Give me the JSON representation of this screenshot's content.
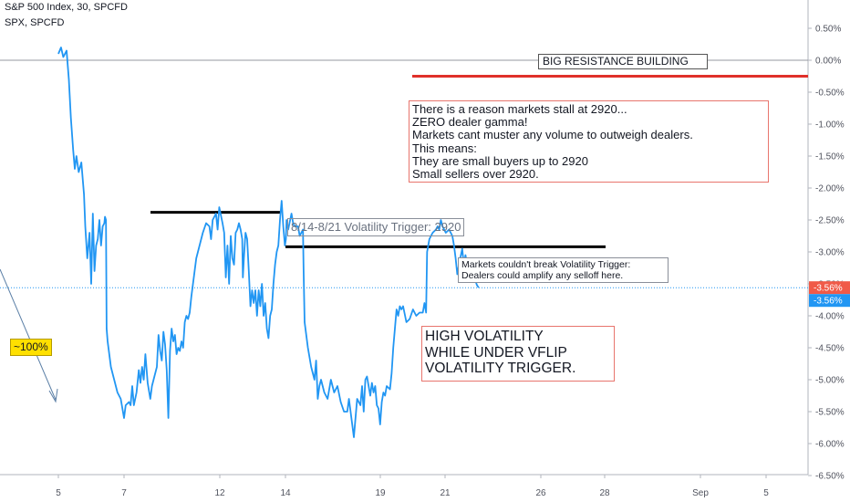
{
  "header": {
    "title": "S&P 500 Index, 30, SPCFD",
    "subtitle": "SPX, SPCFD"
  },
  "colors": {
    "series": "#2196f3",
    "level_lines": "#000000",
    "resistance": "#e0302a",
    "badge_price": "#f05a48",
    "badge_series": "#2196f3",
    "callout_yellow": "#ffe000"
  },
  "chart_data": {
    "type": "line",
    "x_tick_labels": [
      "5",
      "7",
      "12",
      "14",
      "19",
      "21",
      "26",
      "28",
      "Sep",
      "5"
    ],
    "y_tick_labels": [
      "0.50%",
      "0.00%",
      "-0.50%",
      "-1.00%",
      "-1.50%",
      "-2.00%",
      "-2.50%",
      "-3.00%",
      "-3.50%",
      "-4.00%",
      "-4.50%",
      "-5.00%",
      "-5.50%",
      "-6.00%",
      "-6.50%"
    ],
    "ylim": [
      -6.5,
      0.9
    ],
    "y_unit": "%",
    "grid": false,
    "last_value_labels": [
      "-3.56%",
      "-3.56%"
    ],
    "last_value": -3.56,
    "series": [
      {
        "points": [
          [
            0.0,
            0.1
          ],
          [
            0.08,
            0.2
          ],
          [
            0.15,
            0.05
          ],
          [
            0.25,
            0.15
          ],
          [
            0.32,
            -0.3
          ],
          [
            0.38,
            -0.9
          ],
          [
            0.45,
            -1.4
          ],
          [
            0.5,
            -1.7
          ],
          [
            0.55,
            -1.5
          ],
          [
            0.62,
            -1.75
          ],
          [
            0.7,
            -1.6
          ],
          [
            0.78,
            -2.1
          ],
          [
            0.82,
            -2.6
          ],
          [
            0.88,
            -3.1
          ],
          [
            0.95,
            -2.7
          ],
          [
            1.0,
            -3.5
          ],
          [
            1.05,
            -2.4
          ],
          [
            1.1,
            -3.3
          ],
          [
            1.15,
            -2.9
          ],
          [
            1.2,
            -2.8
          ],
          [
            1.25,
            -2.5
          ],
          [
            1.3,
            -2.9
          ],
          [
            1.35,
            -2.6
          ],
          [
            1.4,
            -2.55
          ],
          [
            1.42,
            -2.45
          ],
          [
            1.45,
            -2.5
          ],
          [
            1.47,
            -4.2
          ],
          [
            1.5,
            -4.4
          ],
          [
            1.55,
            -4.6
          ],
          [
            1.6,
            -4.8
          ],
          [
            1.7,
            -5.0
          ],
          [
            1.8,
            -5.2
          ],
          [
            1.9,
            -5.3
          ],
          [
            2.0,
            -5.6
          ],
          [
            2.05,
            -5.4
          ],
          [
            2.15,
            -5.35
          ],
          [
            2.2,
            -5.4
          ],
          [
            2.25,
            -5.1
          ],
          [
            2.3,
            -5.4
          ],
          [
            2.38,
            -5.2
          ],
          [
            2.45,
            -4.85
          ],
          [
            2.5,
            -5.05
          ],
          [
            2.55,
            -4.8
          ],
          [
            2.6,
            -5.0
          ],
          [
            2.65,
            -4.6
          ],
          [
            2.72,
            -5.05
          ],
          [
            2.8,
            -5.3
          ],
          [
            2.85,
            -5.1
          ],
          [
            2.9,
            -5.0
          ],
          [
            3.0,
            -4.8
          ],
          [
            3.05,
            -4.3
          ],
          [
            3.1,
            -4.55
          ],
          [
            3.15,
            -4.7
          ],
          [
            3.2,
            -4.25
          ],
          [
            3.25,
            -4.45
          ],
          [
            3.3,
            -4.85
          ],
          [
            3.35,
            -5.6
          ],
          [
            3.4,
            -4.55
          ],
          [
            3.45,
            -4.2
          ],
          [
            3.5,
            -4.4
          ],
          [
            3.55,
            -4.3
          ],
          [
            3.6,
            -4.6
          ],
          [
            3.65,
            -4.5
          ],
          [
            3.7,
            -4.55
          ],
          [
            3.75,
            -4.4
          ],
          [
            3.8,
            -4.5
          ],
          [
            3.85,
            -4.1
          ],
          [
            3.9,
            -4.0
          ],
          [
            3.95,
            -4.05
          ],
          [
            4.0,
            -3.95
          ],
          [
            4.05,
            -3.7
          ],
          [
            4.1,
            -3.5
          ],
          [
            4.15,
            -3.3
          ],
          [
            4.2,
            -3.1
          ],
          [
            4.3,
            -2.9
          ],
          [
            4.4,
            -2.7
          ],
          [
            4.5,
            -2.55
          ],
          [
            4.6,
            -2.6
          ],
          [
            4.65,
            -2.8
          ],
          [
            4.7,
            -2.5
          ],
          [
            4.8,
            -2.4
          ],
          [
            4.85,
            -2.65
          ],
          [
            4.9,
            -2.3
          ],
          [
            5.0,
            -2.55
          ],
          [
            5.05,
            -2.7
          ],
          [
            5.1,
            -3.4
          ],
          [
            5.15,
            -2.9
          ],
          [
            5.2,
            -3.5
          ],
          [
            5.25,
            -2.75
          ],
          [
            5.3,
            -3.1
          ],
          [
            5.35,
            -3.2
          ],
          [
            5.4,
            -2.7
          ],
          [
            5.45,
            -2.65
          ],
          [
            5.5,
            -2.55
          ],
          [
            5.55,
            -2.65
          ],
          [
            5.6,
            -2.8
          ],
          [
            5.62,
            -3.4
          ],
          [
            5.65,
            -3.1
          ],
          [
            5.7,
            -2.7
          ],
          [
            5.75,
            -2.8
          ],
          [
            5.8,
            -3.3
          ],
          [
            5.85,
            -3.85
          ],
          [
            5.9,
            -3.6
          ],
          [
            5.95,
            -3.8
          ],
          [
            6.0,
            -3.6
          ],
          [
            6.05,
            -4.0
          ],
          [
            6.1,
            -3.6
          ],
          [
            6.15,
            -3.85
          ],
          [
            6.2,
            -3.5
          ],
          [
            6.25,
            -4.0
          ],
          [
            6.3,
            -3.8
          ],
          [
            6.35,
            -4.2
          ],
          [
            6.4,
            -4.35
          ],
          [
            6.45,
            -4.0
          ],
          [
            6.5,
            -3.9
          ],
          [
            6.55,
            -3.5
          ],
          [
            6.6,
            -3.2
          ],
          [
            6.65,
            -3.0
          ],
          [
            6.7,
            -2.9
          ],
          [
            6.75,
            -2.5
          ],
          [
            6.8,
            -2.2
          ],
          [
            6.85,
            -2.6
          ],
          [
            6.9,
            -2.9
          ],
          [
            6.93,
            -2.8
          ],
          [
            6.95,
            -2.5
          ],
          [
            7.0,
            -2.65
          ],
          [
            7.1,
            -2.4
          ],
          [
            7.15,
            -2.55
          ],
          [
            7.2,
            -2.6
          ],
          [
            7.3,
            -2.6
          ],
          [
            7.35,
            -2.75
          ],
          [
            7.4,
            -2.7
          ],
          [
            7.45,
            -2.65
          ],
          [
            7.47,
            -3.3
          ],
          [
            7.5,
            -4.1
          ],
          [
            7.55,
            -4.3
          ],
          [
            7.6,
            -4.5
          ],
          [
            7.7,
            -4.8
          ],
          [
            7.8,
            -5.0
          ],
          [
            7.85,
            -4.7
          ],
          [
            7.9,
            -5.3
          ],
          [
            7.95,
            -5.1
          ],
          [
            8.0,
            -5.0
          ],
          [
            8.1,
            -5.2
          ],
          [
            8.2,
            -5.3
          ],
          [
            8.3,
            -5.0
          ],
          [
            8.4,
            -5.2
          ],
          [
            8.5,
            -5.1
          ],
          [
            8.6,
            -5.35
          ],
          [
            8.7,
            -5.5
          ],
          [
            8.8,
            -5.5
          ],
          [
            8.85,
            -5.3
          ],
          [
            8.9,
            -5.5
          ],
          [
            9.0,
            -5.9
          ],
          [
            9.1,
            -5.3
          ],
          [
            9.2,
            -5.4
          ],
          [
            9.25,
            -5.1
          ],
          [
            9.3,
            -5.5
          ],
          [
            9.35,
            -5.0
          ],
          [
            9.4,
            -4.95
          ],
          [
            9.5,
            -5.25
          ],
          [
            9.55,
            -5.05
          ],
          [
            9.6,
            -5.2
          ],
          [
            9.65,
            -5.1
          ],
          [
            9.7,
            -5.4
          ],
          [
            9.75,
            -5.45
          ],
          [
            9.8,
            -5.7
          ],
          [
            9.85,
            -5.35
          ],
          [
            9.9,
            -5.2
          ],
          [
            9.95,
            -5.25
          ],
          [
            10.0,
            -5.1
          ],
          [
            10.1,
            -5.15
          ],
          [
            10.15,
            -4.9
          ],
          [
            10.2,
            -4.5
          ],
          [
            10.25,
            -4.2
          ],
          [
            10.3,
            -3.9
          ],
          [
            10.35,
            -4.0
          ],
          [
            10.4,
            -3.85
          ],
          [
            10.45,
            -3.9
          ],
          [
            10.5,
            -3.85
          ],
          [
            10.6,
            -4.1
          ],
          [
            10.7,
            -4.05
          ],
          [
            10.8,
            -3.9
          ],
          [
            10.9,
            -4.0
          ],
          [
            11.0,
            -3.95
          ],
          [
            11.1,
            -3.95
          ],
          [
            11.15,
            -3.8
          ],
          [
            11.2,
            -3.95
          ],
          [
            11.23,
            -3.0
          ],
          [
            11.3,
            -2.8
          ],
          [
            11.4,
            -2.7
          ],
          [
            11.5,
            -2.65
          ],
          [
            11.55,
            -2.6
          ],
          [
            11.6,
            -2.65
          ],
          [
            11.65,
            -2.5
          ],
          [
            11.7,
            -2.6
          ],
          [
            11.8,
            -2.7
          ],
          [
            11.9,
            -2.65
          ],
          [
            12.0,
            -2.75
          ],
          [
            12.05,
            -2.9
          ],
          [
            12.1,
            -3.1
          ],
          [
            12.15,
            -3.35
          ],
          [
            12.2,
            -3.2
          ],
          [
            12.3,
            -2.95
          ],
          [
            12.35,
            -3.2
          ],
          [
            12.4,
            -3.05
          ],
          [
            12.45,
            -3.2
          ],
          [
            12.5,
            -3.35
          ],
          [
            12.55,
            -3.25
          ],
          [
            12.6,
            -3.2
          ],
          [
            12.65,
            -3.35
          ],
          [
            12.7,
            -3.45
          ],
          [
            12.75,
            -3.52
          ],
          [
            12.8,
            -3.56
          ]
        ]
      }
    ],
    "annotations": [
      "BIG RESISTANCE BUILDING",
      "8/14-8/21 Volatility Trigger: 2920",
      "~100%"
    ],
    "info_box": {
      "lines": [
        "There is a reason markets stall at 2920...",
        "ZERO dealer gamma!",
        "Markets cant muster any volume to outweigh dealers.",
        "This means:",
        "They are small buyers up to 2920",
        "Small sellers over 2920."
      ]
    },
    "note_box": {
      "lines": [
        "Markets couldn't break Volatility Trigger:",
        "Dealers could amplify any selloff here."
      ]
    },
    "vol_box": {
      "lines": [
        "HIGH VOLATILITY",
        "WHILE UNDER VFLIP",
        "VOLATILITY TRIGGER."
      ]
    },
    "levels": {
      "zero_line": 0.0,
      "resistance": -0.25,
      "top_bar": -2.38,
      "trigger_bar": -2.92,
      "last_price": -3.56
    }
  }
}
